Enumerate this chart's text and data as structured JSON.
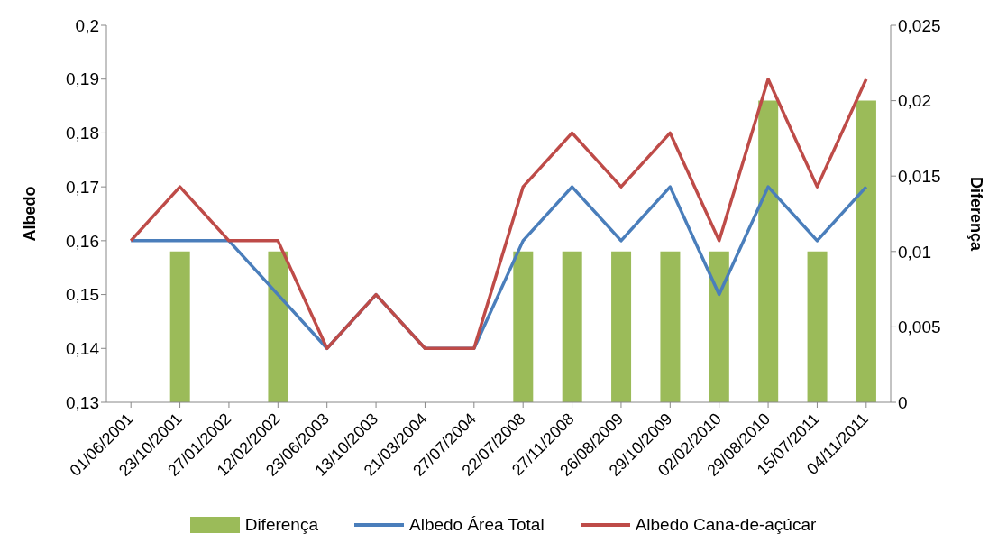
{
  "chart_data": {
    "type": "line",
    "ylabel": "Albedo",
    "y2label": "Diferença",
    "legend": "bottom",
    "categories": [
      "01/06/2001",
      "23/10/2001",
      "27/01/2002",
      "12/02/2002",
      "23/06/2003",
      "13/10/2003",
      "21/03/2004",
      "27/07/2004",
      "22/07/2008",
      "27/11/2008",
      "26/08/2009",
      "29/10/2009",
      "02/02/2010",
      "29/08/2010",
      "15/07/2011",
      "04/11/2011"
    ],
    "series": [
      {
        "name": "Diferença",
        "type": "bar",
        "axis": "y2",
        "color": "#9bbb59",
        "values": [
          0,
          0.01,
          0,
          0.01,
          0,
          0,
          0,
          0,
          0.01,
          0.01,
          0.01,
          0.01,
          0.01,
          0.02,
          0.01,
          0.02
        ]
      },
      {
        "name": "Albedo Área Total",
        "color": "#4a7ebb",
        "values": [
          0.16,
          0.16,
          0.16,
          0.15,
          0.14,
          0.15,
          0.14,
          0.14,
          0.16,
          0.17,
          0.16,
          0.17,
          0.15,
          0.17,
          0.16,
          0.17
        ]
      },
      {
        "name": "Albedo Cana-de-açúcar",
        "color": "#be4b48",
        "values": [
          0.16,
          0.17,
          0.16,
          0.16,
          0.14,
          0.15,
          0.14,
          0.14,
          0.17,
          0.18,
          0.17,
          0.18,
          0.16,
          0.19,
          0.17,
          0.19
        ]
      }
    ],
    "ylim": [
      0.13,
      0.2
    ],
    "yticks": [
      {
        "value": 0.13,
        "label": "0,13"
      },
      {
        "value": 0.14,
        "label": "0,14"
      },
      {
        "value": 0.15,
        "label": "0,15"
      },
      {
        "value": 0.16,
        "label": "0,16"
      },
      {
        "value": 0.17,
        "label": "0,17"
      },
      {
        "value": 0.18,
        "label": "0,18"
      },
      {
        "value": 0.19,
        "label": "0,19"
      },
      {
        "value": 0.2,
        "label": "0,2"
      }
    ],
    "y2lim": [
      0,
      0.025
    ],
    "y2ticks": [
      0,
      {
        "value": 0.005,
        "label": "0,005"
      },
      {
        "value": 0.01,
        "label": "0,01"
      },
      {
        "value": 0.015,
        "label": "0,015"
      },
      {
        "value": 0.02,
        "label": "0,02"
      },
      {
        "value": 0.025,
        "label": "0,025"
      }
    ]
  }
}
